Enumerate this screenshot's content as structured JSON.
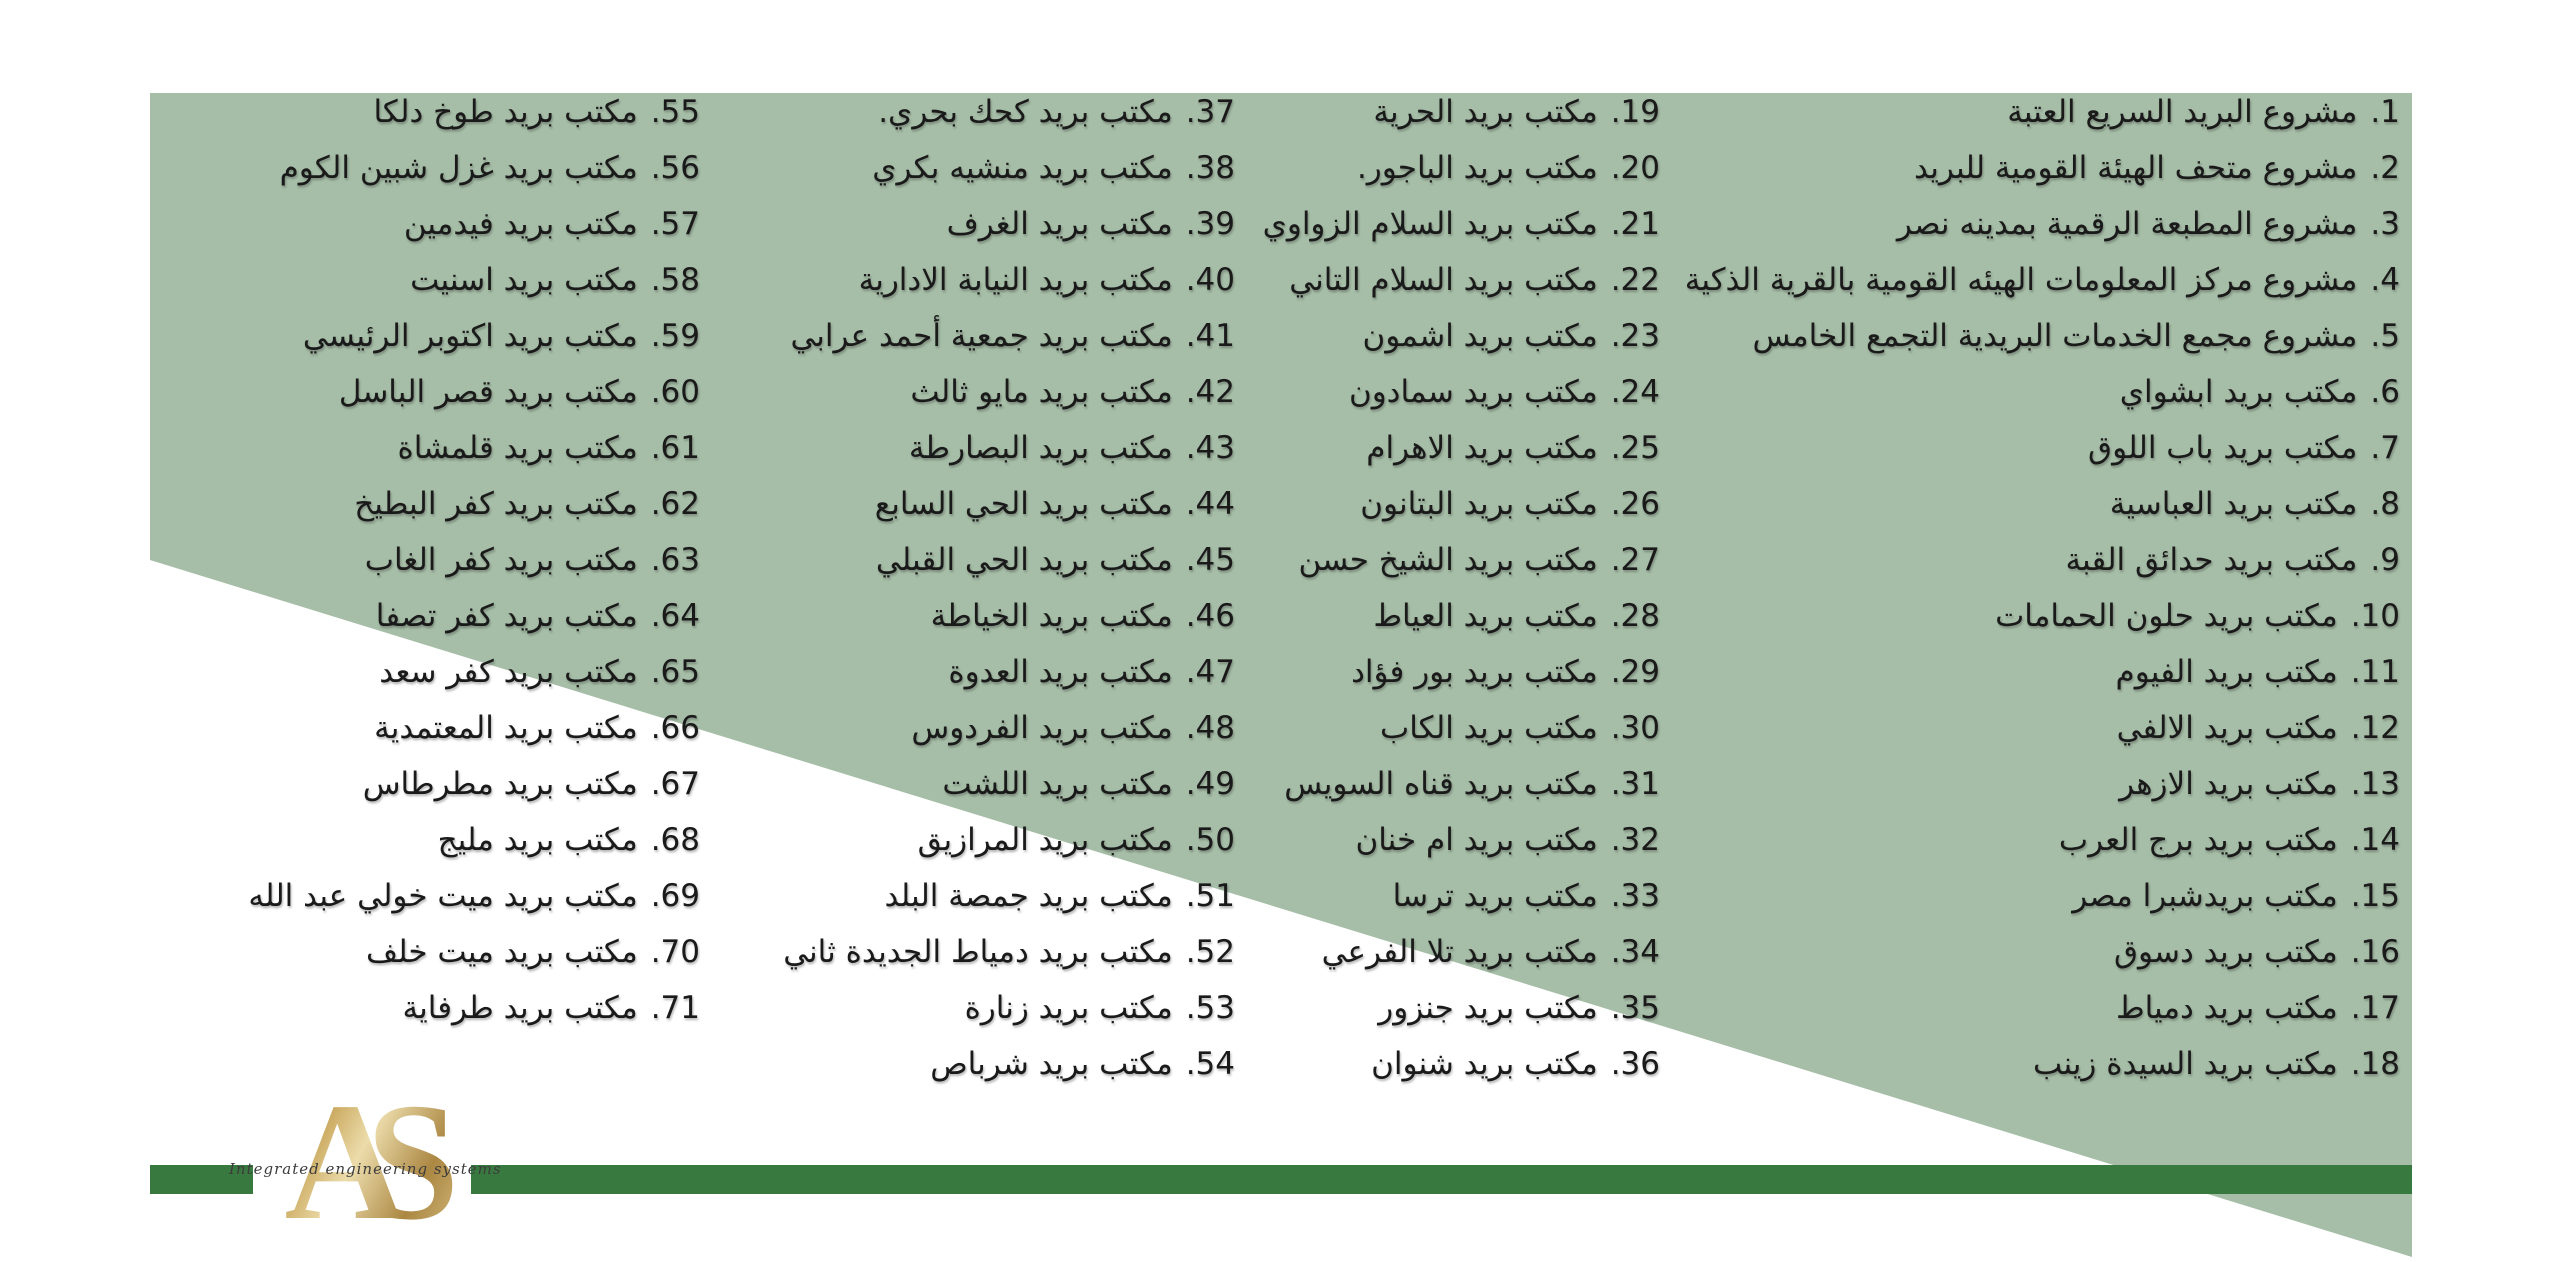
{
  "colors": {
    "panel_green": "#a6bea7",
    "bar_green": "#38793f",
    "gold": "#b5975a",
    "text": "#1a1a1a"
  },
  "logo": {
    "monogram": "AS",
    "tagline": "Integrated engineering systems"
  },
  "columns": [
    {
      "items": [
        {
          "num": "1.",
          "label": "مشروع البريد السريع العتبة"
        },
        {
          "num": "2.",
          "label": "مشروع متحف الهيئة القومية للبريد"
        },
        {
          "num": "3.",
          "label": "مشروع المطبعة الرقمية بمدينه نصر"
        },
        {
          "num": "4.",
          "label": "مشروع مركز المعلومات الهيئه القومية بالقرية الذكية"
        },
        {
          "num": "5.",
          "label": "مشروع مجمع الخدمات البريدية التجمع الخامس"
        },
        {
          "num": "6.",
          "label": "مكتب بريد ابشواي"
        },
        {
          "num": "7.",
          "label": "مكتب بريد باب اللوق"
        },
        {
          "num": "8.",
          "label": "مكتب بريد العباسية"
        },
        {
          "num": "9.",
          "label": "مكتب بريد حدائق القبة"
        },
        {
          "num": "10.",
          "label": "مكتب بريد حلون الحمامات"
        },
        {
          "num": "11.",
          "label": "مكتب بريد الفيوم"
        },
        {
          "num": "12.",
          "label": "مكتب بريد الالفي"
        },
        {
          "num": "13.",
          "label": "مكتب بريد الازهر"
        },
        {
          "num": "14.",
          "label": "مكتب بريد برج العرب"
        },
        {
          "num": "15.",
          "label": "مكتب بريدشبرا مصر"
        },
        {
          "num": "16.",
          "label": "مكتب بريد دسوق"
        },
        {
          "num": "17.",
          "label": "مكتب بريد دمياط"
        },
        {
          "num": "18.",
          "label": "مكتب بريد السيدة زينب"
        }
      ]
    },
    {
      "items": [
        {
          "num": "19.",
          "label": "مكتب بريد الحرية"
        },
        {
          "num": "20.",
          "label": "مكتب بريد الباجور."
        },
        {
          "num": "21.",
          "label": "مكتب بريد السلام الزواوي"
        },
        {
          "num": "22.",
          "label": "مكتب بريد السلام التاني"
        },
        {
          "num": "23.",
          "label": "مكتب بريد اشمون"
        },
        {
          "num": "24.",
          "label": "مكتب بريد سمادون"
        },
        {
          "num": "25.",
          "label": "مكتب بريد الاهرام"
        },
        {
          "num": "26.",
          "label": "مكتب بريد البتانون"
        },
        {
          "num": "27.",
          "label": "مكتب بريد الشيخ حسن"
        },
        {
          "num": "28.",
          "label": "مكتب بريد العياط"
        },
        {
          "num": "29.",
          "label": "مكتب بريد بور فؤاد"
        },
        {
          "num": "30.",
          "label": "مكتب بريد الكاب"
        },
        {
          "num": "31.",
          "label": "مكتب بريد قناه السويس"
        },
        {
          "num": "32.",
          "label": "مكتب بريد ام خنان"
        },
        {
          "num": "33.",
          "label": "مكتب بريد ترسا"
        },
        {
          "num": "34.",
          "label": "مكتب بريد تلا الفرعي"
        },
        {
          "num": "35.",
          "label": "مكتب بريد جنزور"
        },
        {
          "num": "36.",
          "label": "مكتب بريد شنوان"
        }
      ]
    },
    {
      "items": [
        {
          "num": "37.",
          "label": "مكتب بريد كحك بحري."
        },
        {
          "num": "38.",
          "label": "مكتب بريد منشيه بكري"
        },
        {
          "num": "39.",
          "label": "مكتب بريد الغرف"
        },
        {
          "num": "40.",
          "label": "مكتب بريد النيابة الادارية"
        },
        {
          "num": "41.",
          "label": "مكتب بريد جمعية أحمد عرابي"
        },
        {
          "num": "42.",
          "label": "مكتب بريد مايو ثالث"
        },
        {
          "num": "43.",
          "label": "مكتب بريد البصارطة"
        },
        {
          "num": "44.",
          "label": "مكتب بريد الحي السابع"
        },
        {
          "num": "45.",
          "label": "مكتب بريد الحي القبلي"
        },
        {
          "num": "46.",
          "label": "مكتب بريد الخياطة"
        },
        {
          "num": "47.",
          "label": "مكتب بريد العدوة"
        },
        {
          "num": "48.",
          "label": "مكتب بريد الفردوس"
        },
        {
          "num": "49.",
          "label": "مكتب بريد اللشت"
        },
        {
          "num": "50.",
          "label": "مكتب بريد المرازيق"
        },
        {
          "num": "51.",
          "label": "مكتب بريد جمصة البلد"
        },
        {
          "num": "52.",
          "label": "مكتب بريد دمياط الجديدة ثاني"
        },
        {
          "num": "53.",
          "label": "مكتب بريد زنارة"
        },
        {
          "num": "54.",
          "label": "مكتب بريد شرباص"
        }
      ]
    },
    {
      "items": [
        {
          "num": "55.",
          "label": "مكتب بريد طوخ دلكا"
        },
        {
          "num": "56.",
          "label": "مكتب بريد غزل شبين الكوم"
        },
        {
          "num": "57.",
          "label": "مكتب بريد فيدمين"
        },
        {
          "num": "58.",
          "label": "مكتب بريد اسنيت"
        },
        {
          "num": "59.",
          "label": "مكتب بريد اكتوبر الرئيسي"
        },
        {
          "num": "60.",
          "label": "مكتب بريد قصر الباسل"
        },
        {
          "num": "61.",
          "label": "مكتب بريد قلمشاة"
        },
        {
          "num": "62.",
          "label": "مكتب بريد كفر البطيخ"
        },
        {
          "num": "63.",
          "label": "مكتب بريد كفر الغاب"
        },
        {
          "num": "64.",
          "label": "مكتب بريد كفر تصفا"
        },
        {
          "num": "65.",
          "label": "مكتب بريد كفر سعد"
        },
        {
          "num": "66.",
          "label": "مكتب بريد المعتمدية"
        },
        {
          "num": "67.",
          "label": "مكتب بريد مطرطاس"
        },
        {
          "num": "68.",
          "label": "مكتب بريد مليج"
        },
        {
          "num": "69.",
          "label": "مكتب بريد ميت خولي عبد الله"
        },
        {
          "num": "70.",
          "label": "مكتب بريد ميت خلف"
        },
        {
          "num": "71.",
          "label": "مكتب بريد طرفاية"
        }
      ]
    }
  ]
}
